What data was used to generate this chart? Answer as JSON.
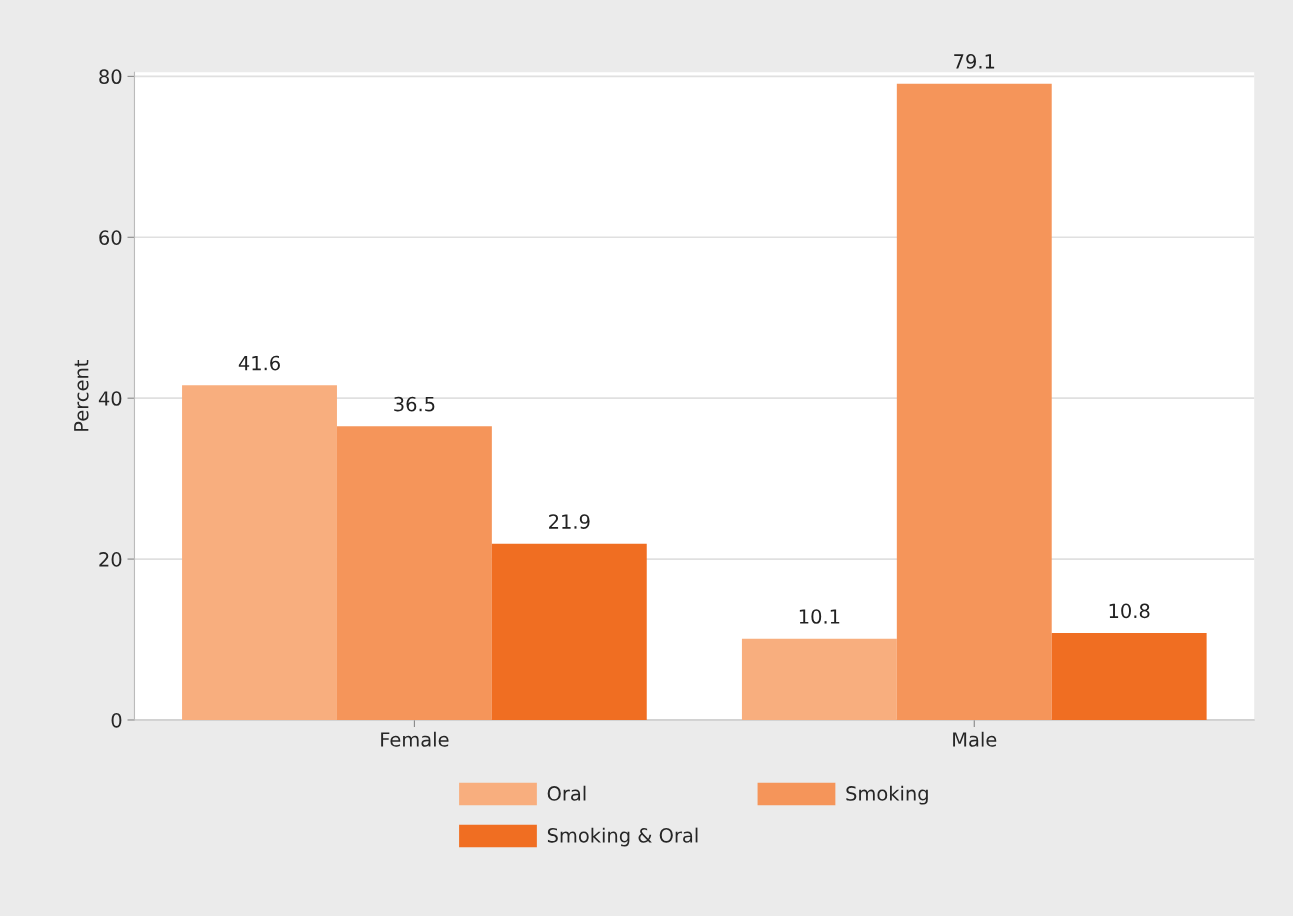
{
  "chart_data": {
    "type": "bar",
    "ylabel": "Percent",
    "categories": [
      "Female",
      "Male"
    ],
    "series": [
      {
        "name": "Oral",
        "color": "#f8ae7e",
        "values": [
          41.6,
          10.1
        ]
      },
      {
        "name": "Smoking",
        "color": "#f5955a",
        "values": [
          36.5,
          79.1
        ]
      },
      {
        "name": "Smoking & Oral",
        "color": "#f06e22",
        "values": [
          21.9,
          10.8
        ]
      }
    ],
    "ylim": [
      0,
      80.5
    ],
    "yticks": [
      0,
      20,
      40,
      60,
      80
    ],
    "grid": "y",
    "legend": "bottom",
    "data_labels": true
  }
}
